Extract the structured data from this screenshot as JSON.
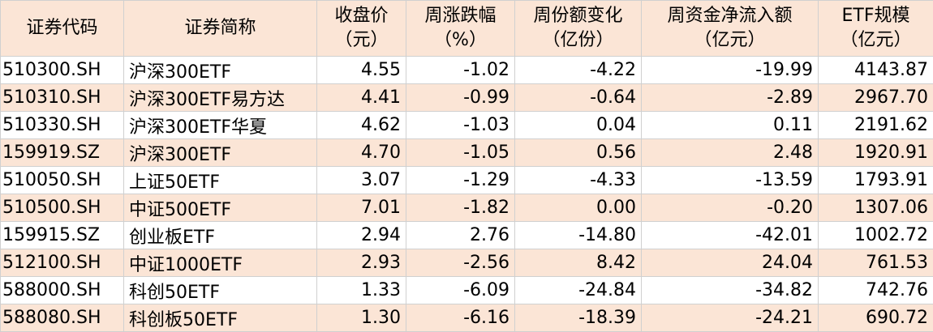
{
  "table": {
    "header": [
      [
        "证券代码"
      ],
      [
        "证券简称"
      ],
      [
        "收盘价",
        "（元）"
      ],
      [
        "周涨跌幅",
        "（%）"
      ],
      [
        "周份额变化",
        "（亿份）"
      ],
      [
        "周资金净流入额",
        "（亿元）"
      ],
      [
        "ETF规模",
        "（亿元）"
      ]
    ],
    "rows": [
      [
        "510300.SH",
        "沪深300ETF",
        "4.55",
        "-1.02",
        "-4.22",
        "-19.99",
        "4143.87"
      ],
      [
        "510310.SH",
        "沪深300ETF易方达",
        "4.41",
        "-0.99",
        "-0.64",
        "-2.89",
        "2967.70"
      ],
      [
        "510330.SH",
        "沪深300ETF华夏",
        "4.62",
        "-1.03",
        "0.04",
        "0.11",
        "2191.62"
      ],
      [
        "159919.SZ",
        "沪深300ETF",
        "4.70",
        "-1.05",
        "0.56",
        "2.48",
        "1920.91"
      ],
      [
        "510050.SH",
        "上证50ETF",
        "3.07",
        "-1.29",
        "-4.33",
        "-13.59",
        "1793.91"
      ],
      [
        "510500.SH",
        "中证500ETF",
        "7.01",
        "-1.82",
        "0.00",
        "-0.20",
        "1307.06"
      ],
      [
        "159915.SZ",
        "创业板ETF",
        "2.94",
        "2.76",
        "-14.80",
        "-42.01",
        "1002.72"
      ],
      [
        "512100.SH",
        "中证1000ETF",
        "2.93",
        "-2.56",
        "8.42",
        "24.04",
        "761.53"
      ],
      [
        "588000.SH",
        "科创50ETF",
        "1.33",
        "-6.09",
        "-24.84",
        "-34.82",
        "742.76"
      ],
      [
        "588080.SH",
        "科创板50ETF",
        "1.30",
        "-6.16",
        "-18.39",
        "-24.21",
        "690.72"
      ]
    ]
  }
}
